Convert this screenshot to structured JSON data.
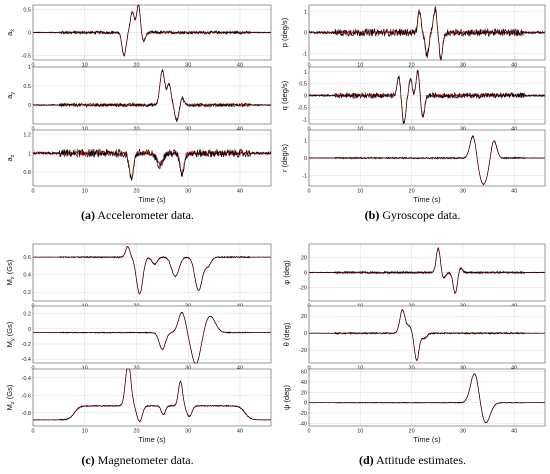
{
  "panels": [
    {
      "id": "a",
      "caption_letter": "(a)",
      "caption_text": " Accelerometer data.",
      "xlabel": "Time (s)",
      "xticks": [
        0,
        10,
        20,
        30,
        40
      ],
      "xlim": [
        0,
        46
      ],
      "subplots": [
        {
          "ylabel": "a",
          "ysub": "x",
          "yunit": "",
          "ylim": [
            -0.6,
            0.6
          ],
          "yticks": [
            "0.5",
            "0",
            "-0.5"
          ],
          "ytick_values": [
            0.5,
            0,
            -0.5
          ],
          "events": [
            [
              17.6,
              -0.5,
              0.4
            ],
            [
              19.2,
              0.45,
              0.4
            ],
            [
              20.4,
              0.62,
              0.35
            ],
            [
              21.3,
              -0.2,
              0.4
            ]
          ],
          "noise": 0.035,
          "base": 0
        },
        {
          "ylabel": "a",
          "ysub": "y",
          "yunit": "",
          "ylim": [
            -0.5,
            1.0
          ],
          "yticks": [
            "1",
            "0.5",
            "0"
          ],
          "ytick_values": [
            1,
            0.5,
            0
          ],
          "events": [
            [
              25.0,
              0.9,
              0.45
            ],
            [
              26.3,
              0.55,
              0.4
            ],
            [
              27.8,
              -0.4,
              0.4
            ],
            [
              28.8,
              0.2,
              0.35
            ]
          ],
          "noise": 0.05,
          "base": 0
        },
        {
          "ylabel": "a",
          "ysub": "z",
          "yunit": "",
          "ylim": [
            0.65,
            1.25
          ],
          "yticks": [
            "1.2",
            "1",
            "0.8"
          ],
          "ytick_values": [
            1.2,
            1.0,
            0.8
          ],
          "events": [
            [
              19.0,
              -0.28,
              0.4
            ],
            [
              24.5,
              -0.12,
              0.6
            ],
            [
              28.8,
              -0.22,
              0.4
            ]
          ],
          "noise": 0.045,
          "base": 1.0
        }
      ]
    },
    {
      "id": "b",
      "caption_letter": "(b)",
      "caption_text": " Gyroscope data.",
      "xlabel": "Time (s)",
      "xticks": [
        0,
        10,
        20,
        30,
        40
      ],
      "xlim": [
        0,
        46
      ],
      "subplots": [
        {
          "ylabel": "p (deg/s)",
          "ysub": "",
          "yunit": "",
          "ylim": [
            -1.3,
            1.3
          ],
          "yticks": [
            "1",
            "0",
            "-1"
          ],
          "ytick_values": [
            1,
            0,
            -1
          ],
          "events": [
            [
              21.5,
              1.0,
              0.3
            ],
            [
              23.0,
              -1.1,
              0.35
            ],
            [
              24.6,
              1.1,
              0.35
            ],
            [
              25.7,
              -1.25,
              0.35
            ]
          ],
          "noise": 0.18,
          "base": 0
        },
        {
          "ylabel": "q (deg/s)",
          "ysub": "",
          "yunit": "",
          "ylim": [
            -1.2,
            1.2
          ],
          "yticks": [
            "1",
            "0.5",
            "0",
            "-0.5",
            "-1"
          ],
          "ytick_values": [
            1,
            0.5,
            0,
            -0.5,
            -1
          ],
          "events": [
            [
              17.5,
              0.8,
              0.3
            ],
            [
              18.5,
              -1.15,
              0.35
            ],
            [
              19.8,
              0.7,
              0.3
            ],
            [
              21.2,
              1.05,
              0.3
            ],
            [
              22.2,
              -0.9,
              0.35
            ]
          ],
          "noise": 0.12,
          "base": 0
        },
        {
          "ylabel": "r (deg/s)",
          "ysub": "",
          "yunit": "",
          "ylim": [
            -1.6,
            1.6
          ],
          "yticks": [
            "1",
            "0",
            "-1"
          ],
          "ytick_values": [
            1,
            0,
            -1
          ],
          "events": [
            [
              32.0,
              1.35,
              0.6
            ],
            [
              34.0,
              -1.5,
              0.9
            ],
            [
              36.0,
              1.1,
              0.55
            ]
          ],
          "noise": 0.05,
          "base": 0
        }
      ]
    },
    {
      "id": "c",
      "caption_letter": "(c)",
      "caption_text": " Magnetometer data.",
      "xlabel": "Time (s)",
      "xticks": [
        0,
        10,
        20,
        30,
        40
      ],
      "xlim": [
        0,
        46
      ],
      "subplots": [
        {
          "ylabel": "M",
          "ysub": "x",
          "yunit": " (Gs)",
          "ylim": [
            0.1,
            0.75
          ],
          "yticks": [
            "0.6",
            "0.4",
            "0.2"
          ],
          "ytick_values": [
            0.6,
            0.4,
            0.2
          ],
          "events": [
            [
              18.3,
              0.12,
              0.4
            ],
            [
              20.6,
              -0.42,
              0.6
            ],
            [
              23.5,
              -0.08,
              0.5
            ],
            [
              27.5,
              -0.22,
              0.7
            ],
            [
              32.0,
              -0.38,
              0.7
            ],
            [
              33.8,
              -0.1,
              0.6
            ]
          ],
          "noise": 0.008,
          "base": 0.6
        },
        {
          "ylabel": "M",
          "ysub": "y",
          "yunit": " (Gs)",
          "ylim": [
            -0.45,
            0.3
          ],
          "yticks": [
            "0.2",
            "0",
            "-0.2",
            "-0.4"
          ],
          "ytick_values": [
            0.2,
            0,
            -0.2,
            -0.4
          ],
          "events": [
            [
              25.0,
              -0.22,
              0.6
            ],
            [
              28.8,
              0.27,
              0.7
            ],
            [
              31.5,
              -0.42,
              0.9
            ],
            [
              34.2,
              0.22,
              1.0
            ]
          ],
          "noise": 0.007,
          "base": -0.05
        },
        {
          "ylabel": "M",
          "ysub": "z",
          "yunit": " (Gs)",
          "ylim": [
            -0.95,
            -0.3
          ],
          "yticks": [
            "-0.4",
            "-0.6",
            "-0.8"
          ],
          "ytick_values": [
            -0.4,
            -0.6,
            -0.8
          ],
          "events": [
            [
              18.4,
              0.5,
              0.5
            ],
            [
              20.6,
              -0.18,
              0.5
            ],
            [
              25.2,
              -0.1,
              0.4
            ],
            [
              28.5,
              0.28,
              0.4
            ],
            [
              30.2,
              -0.12,
              0.5
            ]
          ],
          "noise": 0.008,
          "base": -0.88,
          "plateau": [
            [
              8,
              41,
              0.16
            ]
          ]
        }
      ]
    },
    {
      "id": "d",
      "caption_letter": "(d)",
      "caption_text": " Attitude estimates.",
      "xlabel": "Time (s)",
      "xticks": [
        0,
        10,
        20,
        30,
        40
      ],
      "xlim": [
        0,
        46
      ],
      "subplots": [
        {
          "ylabel": "φ",
          "ysub": "",
          "yunit": " (deg)",
          "ylim": [
            -38,
            38
          ],
          "yticks": [
            "20",
            "0",
            "-20"
          ],
          "ytick_values": [
            20,
            0,
            -20
          ],
          "events": [
            [
              25.2,
              32,
              0.4
            ],
            [
              26.2,
              -8,
              0.4
            ],
            [
              28.5,
              -28,
              0.4
            ],
            [
              29.5,
              6,
              0.4
            ]
          ],
          "noise": 1.6,
          "base": 0
        },
        {
          "ylabel": "θ",
          "ysub": "",
          "yunit": " (deg)",
          "ylim": [
            -35,
            32
          ],
          "yticks": [
            "20",
            "0",
            "-20"
          ],
          "ytick_values": [
            20,
            0,
            -20
          ],
          "events": [
            [
              18.2,
              27,
              0.5
            ],
            [
              19.5,
              8,
              0.5
            ],
            [
              21.0,
              -32,
              0.45
            ],
            [
              22.5,
              -6,
              0.5
            ]
          ],
          "noise": 1.0,
          "base": 0
        },
        {
          "ylabel": "ψ",
          "ysub": "",
          "yunit": " (deg)",
          "ylim": [
            -45,
            65
          ],
          "yticks": [
            "60",
            "40",
            "20",
            "0",
            "-20",
            "-40"
          ],
          "ytick_values": [
            60,
            40,
            20,
            0,
            -20,
            -40
          ],
          "events": [
            [
              32.3,
              58,
              0.8
            ],
            [
              34.4,
              -40,
              0.9
            ]
          ],
          "noise": 0.8,
          "base": 0
        }
      ]
    }
  ],
  "chart_data": [
    {
      "type": "line",
      "panel": "a",
      "title": "",
      "xlabel": "Time (s)",
      "ylabels": [
        "a_x",
        "a_y",
        "a_z"
      ],
      "xlim": [
        0,
        46
      ],
      "series_colors": {
        "measured": "#000000",
        "filtered": "#cc0000"
      }
    },
    {
      "type": "line",
      "panel": "b",
      "title": "",
      "xlabel": "Time (s)",
      "ylabels": [
        "p (deg/s)",
        "q (deg/s)",
        "r (deg/s)"
      ],
      "xlim": [
        0,
        46
      ],
      "series_colors": {
        "measured": "#000000",
        "filtered": "#cc0000"
      }
    },
    {
      "type": "line",
      "panel": "c",
      "title": "",
      "xlabel": "Time (s)",
      "ylabels": [
        "M_x (Gs)",
        "M_y (Gs)",
        "M_z (Gs)"
      ],
      "xlim": [
        0,
        46
      ],
      "series_colors": {
        "measured": "#000000",
        "filtered": "#cc0000"
      }
    },
    {
      "type": "line",
      "panel": "d",
      "title": "",
      "xlabel": "Time (s)",
      "ylabels": [
        "φ (deg)",
        "θ (deg)",
        "ψ (deg)"
      ],
      "xlim": [
        0,
        46
      ],
      "series_colors": {
        "measured": "#000000",
        "filtered": "#cc0000"
      }
    }
  ],
  "colors": {
    "measured": "#000000",
    "filtered": "#cc0000",
    "grid": "#dcdcdc",
    "axes": "#555555"
  }
}
